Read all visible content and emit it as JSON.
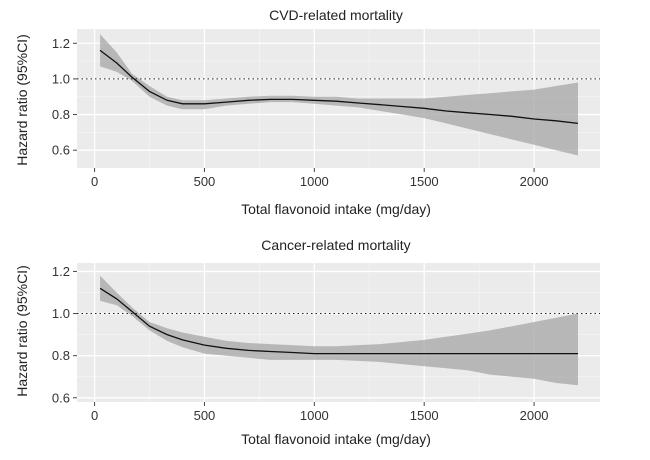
{
  "chart_data": [
    {
      "type": "line",
      "title": "CVD-related mortality",
      "xlabel": "Total flavonoid intake (mg/day)",
      "ylabel": "Hazard ratio (95%CI)",
      "xlim": [
        -80,
        2300
      ],
      "ylim": [
        0.5,
        1.28
      ],
      "x_ticks": [
        0,
        500,
        1000,
        1500,
        2000
      ],
      "x_tick_labels": [
        "0",
        "500",
        "1000",
        "1500",
        "2000"
      ],
      "y_ticks": [
        0.6,
        0.8,
        1.0,
        1.2
      ],
      "y_tick_labels": [
        "0.6",
        "0.8",
        "1.0",
        "1.2"
      ],
      "reference_line": 1.0,
      "series": [
        {
          "name": "Hazard ratio",
          "x": [
            25,
            100,
            170,
            250,
            330,
            400,
            500,
            600,
            700,
            800,
            900,
            1000,
            1100,
            1200,
            1300,
            1400,
            1500,
            1600,
            1700,
            1800,
            1900,
            2000,
            2100,
            2200
          ],
          "y": [
            1.16,
            1.09,
            1.01,
            0.93,
            0.88,
            0.86,
            0.86,
            0.87,
            0.88,
            0.885,
            0.885,
            0.88,
            0.875,
            0.865,
            0.855,
            0.845,
            0.835,
            0.82,
            0.81,
            0.8,
            0.79,
            0.775,
            0.765,
            0.75
          ],
          "lower": [
            1.07,
            1.04,
            0.99,
            0.9,
            0.85,
            0.83,
            0.83,
            0.85,
            0.86,
            0.87,
            0.87,
            0.86,
            0.85,
            0.84,
            0.82,
            0.8,
            0.78,
            0.75,
            0.72,
            0.69,
            0.66,
            0.63,
            0.6,
            0.57
          ],
          "upper": [
            1.25,
            1.15,
            1.03,
            0.96,
            0.9,
            0.88,
            0.88,
            0.89,
            0.9,
            0.905,
            0.905,
            0.9,
            0.9,
            0.89,
            0.89,
            0.89,
            0.89,
            0.9,
            0.91,
            0.92,
            0.93,
            0.94,
            0.96,
            0.98
          ]
        }
      ],
      "grid": true
    },
    {
      "type": "line",
      "title": "Cancer-related mortality",
      "xlabel": "Total flavonoid intake (mg/day)",
      "ylabel": "Hazard ratio (95%CI)",
      "xlim": [
        -80,
        2300
      ],
      "ylim": [
        0.58,
        1.24
      ],
      "x_ticks": [
        0,
        500,
        1000,
        1500,
        2000
      ],
      "x_tick_labels": [
        "0",
        "500",
        "1000",
        "1500",
        "2000"
      ],
      "y_ticks": [
        0.6,
        0.8,
        1.0,
        1.2
      ],
      "y_tick_labels": [
        "0.6",
        "0.8",
        "1.0",
        "1.2"
      ],
      "reference_line": 1.0,
      "series": [
        {
          "name": "Hazard ratio",
          "x": [
            25,
            100,
            170,
            250,
            330,
            400,
            500,
            600,
            700,
            800,
            900,
            1000,
            1100,
            1200,
            1300,
            1400,
            1500,
            1600,
            1700,
            1800,
            1900,
            2000,
            2100,
            2200
          ],
          "y": [
            1.12,
            1.07,
            1.01,
            0.94,
            0.9,
            0.875,
            0.85,
            0.835,
            0.825,
            0.82,
            0.815,
            0.81,
            0.81,
            0.81,
            0.81,
            0.81,
            0.81,
            0.81,
            0.81,
            0.81,
            0.81,
            0.81,
            0.81,
            0.81
          ],
          "lower": [
            1.06,
            1.04,
            0.99,
            0.92,
            0.87,
            0.84,
            0.81,
            0.8,
            0.79,
            0.78,
            0.78,
            0.78,
            0.78,
            0.775,
            0.77,
            0.76,
            0.75,
            0.74,
            0.73,
            0.71,
            0.7,
            0.69,
            0.67,
            0.66
          ],
          "upper": [
            1.18,
            1.1,
            1.03,
            0.96,
            0.93,
            0.91,
            0.89,
            0.87,
            0.86,
            0.855,
            0.85,
            0.845,
            0.845,
            0.85,
            0.855,
            0.865,
            0.875,
            0.89,
            0.905,
            0.92,
            0.94,
            0.96,
            0.98,
            1.0
          ]
        }
      ],
      "grid": true
    }
  ]
}
